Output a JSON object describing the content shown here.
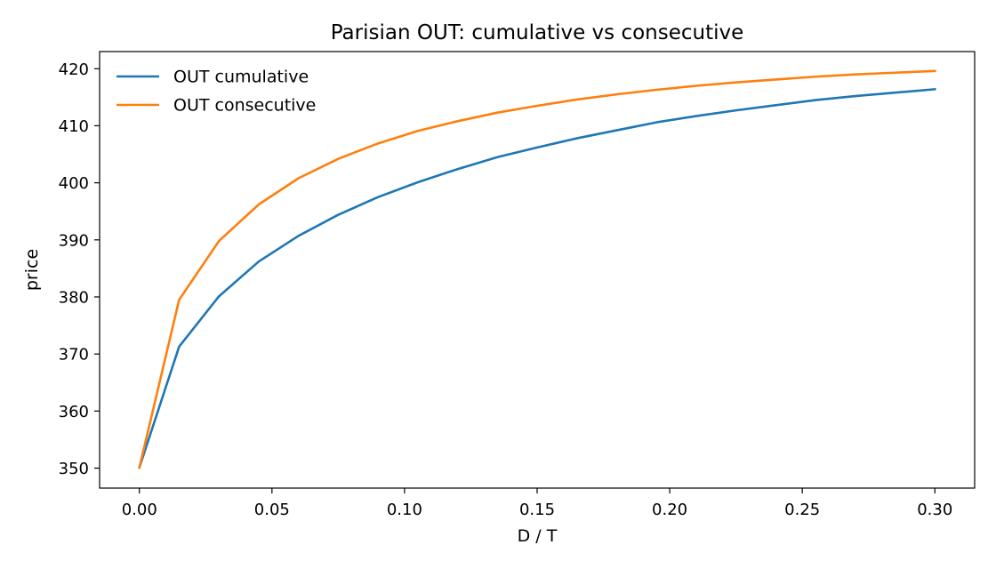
{
  "chart_data": {
    "type": "line",
    "title": "Parisian OUT: cumulative vs consecutive",
    "xlabel": "D / T",
    "ylabel": "price",
    "xlim": [
      -0.015,
      0.315
    ],
    "ylim": [
      346.5,
      423
    ],
    "xticks": [
      0.0,
      0.05,
      0.1,
      0.15,
      0.2,
      0.25,
      0.3
    ],
    "xtick_labels": [
      "0.00",
      "0.05",
      "0.10",
      "0.15",
      "0.20",
      "0.25",
      "0.30"
    ],
    "yticks": [
      350,
      360,
      370,
      380,
      390,
      400,
      410,
      420
    ],
    "ytick_labels": [
      "350",
      "360",
      "370",
      "380",
      "390",
      "400",
      "410",
      "420"
    ],
    "grid": false,
    "legend_position": "upper-left",
    "x": [
      0.0,
      0.015,
      0.03,
      0.045,
      0.06,
      0.075,
      0.09,
      0.105,
      0.12,
      0.135,
      0.15,
      0.165,
      0.18,
      0.195,
      0.21,
      0.225,
      0.24,
      0.255,
      0.27,
      0.285,
      0.3
    ],
    "series": [
      {
        "name": "OUT cumulative",
        "color": "#1f77b4",
        "values": [
          350.1,
          371.3,
          380.1,
          386.2,
          390.7,
          394.4,
          397.5,
          400.1,
          402.4,
          404.5,
          406.2,
          407.8,
          409.2,
          410.6,
          411.7,
          412.7,
          413.6,
          414.5,
          415.2,
          415.8,
          416.4
        ]
      },
      {
        "name": "OUT consecutive",
        "color": "#ff7f0e",
        "values": [
          350.1,
          379.5,
          389.8,
          396.2,
          400.8,
          404.2,
          406.9,
          409.1,
          410.8,
          412.3,
          413.5,
          414.6,
          415.5,
          416.3,
          417.0,
          417.6,
          418.1,
          418.6,
          419.0,
          419.3,
          419.6
        ]
      }
    ]
  }
}
